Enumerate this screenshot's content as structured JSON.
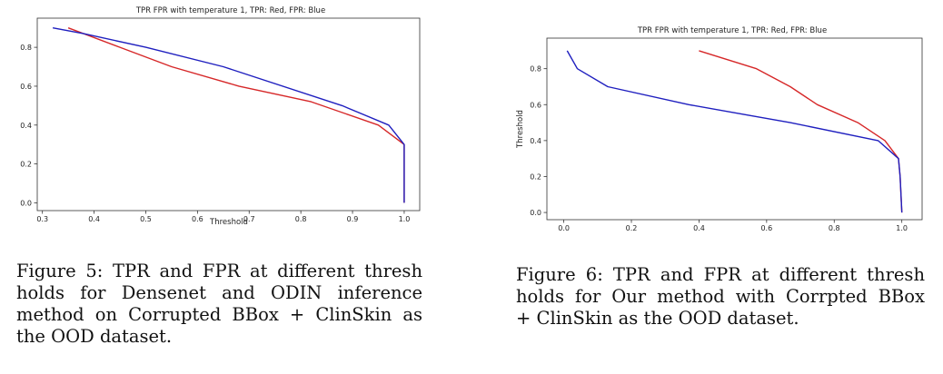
{
  "chart_data": [
    {
      "type": "line",
      "title": "TPR FPR with temperature 1, TPR: Red, FPR: Blue",
      "xlabel": "Threshold",
      "ylabel": "",
      "xlim": [
        0.29,
        1.03
      ],
      "ylim": [
        -0.04,
        0.95
      ],
      "xticks": [
        "0.3",
        "0.4",
        "0.5",
        "0.6",
        "0.7",
        "0.8",
        "0.9",
        "1.0"
      ],
      "yticks": [
        "0.0",
        "0.2",
        "0.4",
        "0.6",
        "0.8"
      ],
      "grid": false,
      "series": [
        {
          "color": "#d62728",
          "x": [
            0.35,
            0.45,
            0.55,
            0.68,
            0.82,
            0.95,
            1.0,
            1.0,
            1.0
          ],
          "y": [
            0.9,
            0.8,
            0.7,
            0.6,
            0.52,
            0.4,
            0.3,
            0.2,
            0.0
          ]
        },
        {
          "color": "#1f1fbf",
          "x": [
            0.32,
            0.38,
            0.5,
            0.65,
            0.88,
            0.97,
            1.0,
            1.0,
            1.0
          ],
          "y": [
            0.9,
            0.87,
            0.8,
            0.7,
            0.5,
            0.4,
            0.3,
            0.2,
            0.0
          ]
        }
      ]
    },
    {
      "type": "line",
      "title": "TPR FPR with temperature 1, TPR: Red, FPR: Blue",
      "xlabel": "",
      "ylabel": "Threshold",
      "xlim": [
        -0.05,
        1.06
      ],
      "ylim": [
        -0.04,
        0.97
      ],
      "xticks": [
        "0.0",
        "0.2",
        "0.4",
        "0.6",
        "0.8",
        "1.0"
      ],
      "yticks": [
        "0.0",
        "0.2",
        "0.4",
        "0.6",
        "0.8"
      ],
      "grid": false,
      "series": [
        {
          "color": "#d62728",
          "x": [
            0.4,
            0.57,
            0.67,
            0.75,
            0.87,
            0.95,
            0.99,
            0.995,
            1.0
          ],
          "y": [
            0.9,
            0.8,
            0.7,
            0.6,
            0.5,
            0.4,
            0.3,
            0.2,
            0.0
          ]
        },
        {
          "color": "#1f1fbf",
          "x": [
            0.01,
            0.04,
            0.13,
            0.37,
            0.67,
            0.93,
            0.99,
            0.995,
            1.0
          ],
          "y": [
            0.9,
            0.8,
            0.7,
            0.6,
            0.5,
            0.4,
            0.3,
            0.2,
            0.0
          ]
        }
      ]
    }
  ],
  "captions": {
    "fig5": [
      "Figure 5: TPR and FPR at different thresh",
      "holds for Densenet and ODIN inference",
      "method on Corrupted BBox + ClinSkin as",
      "the OOD dataset."
    ],
    "fig6": [
      "Figure 6: TPR and FPR at different thresh",
      "holds for Our method with Corrpted BBox",
      "+ ClinSkin as the OOD dataset."
    ]
  }
}
